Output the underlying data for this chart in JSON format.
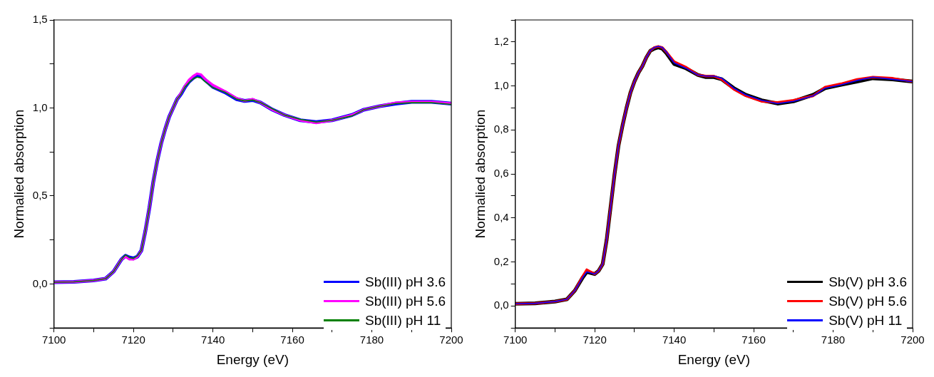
{
  "chart_data": [
    {
      "type": "line",
      "xlabel": "Energy (eV)",
      "ylabel": "Normalied absorption",
      "legend": "bottom right",
      "xlim": [
        7100,
        7200
      ],
      "xticks": [
        7100,
        {
          "value": 7110,
          "label": null
        },
        7120,
        {
          "value": 7130,
          "label": null
        },
        7140,
        {
          "value": 7150,
          "label": null
        },
        7160,
        {
          "value": 7170,
          "label": null
        },
        7180,
        {
          "value": 7190,
          "label": null
        },
        7200
      ],
      "ylim": [
        -0.25,
        1.5
      ],
      "yticks": [
        {
          "value": -0.25,
          "label": null
        },
        {
          "value": 0,
          "label": "0,0"
        },
        {
          "value": 0.25,
          "label": null
        },
        {
          "value": 0.5,
          "label": "0,5"
        },
        {
          "value": 0.75,
          "label": null
        },
        {
          "value": 1,
          "label": "1,0"
        },
        {
          "value": 1.25,
          "label": null
        },
        {
          "value": 1.5,
          "label": "1,5"
        }
      ],
      "x": [
        7100,
        7105,
        7110,
        7113,
        7115,
        7117,
        7118,
        7119,
        7120,
        7121,
        7122,
        7123,
        7124,
        7125,
        7126,
        7127,
        7128,
        7129,
        7130,
        7131,
        7132,
        7133,
        7134,
        7135,
        7136,
        7137,
        7138,
        7140,
        7143,
        7146,
        7148,
        7150,
        7152,
        7155,
        7158,
        7162,
        7166,
        7170,
        7175,
        7178,
        7182,
        7186,
        7190,
        7195,
        7200
      ],
      "series": [
        {
          "name": "Sb(III) pH 3.6",
          "color": "#0000ff",
          "values": [
            0.01,
            0.012,
            0.02,
            0.03,
            0.07,
            0.14,
            0.16,
            0.15,
            0.145,
            0.155,
            0.19,
            0.3,
            0.43,
            0.58,
            0.7,
            0.8,
            0.88,
            0.95,
            1.0,
            1.05,
            1.08,
            1.12,
            1.15,
            1.17,
            1.185,
            1.18,
            1.16,
            1.12,
            1.09,
            1.05,
            1.04,
            1.045,
            1.03,
            0.99,
            0.96,
            0.93,
            0.92,
            0.93,
            0.96,
            0.99,
            1.01,
            1.025,
            1.035,
            1.035,
            1.025
          ]
        },
        {
          "name": "Sb(III) pH 5.6",
          "color": "#ff00ff",
          "values": [
            0.01,
            0.012,
            0.02,
            0.03,
            0.07,
            0.14,
            0.155,
            0.14,
            0.14,
            0.155,
            0.19,
            0.3,
            0.43,
            0.58,
            0.7,
            0.8,
            0.88,
            0.95,
            1.0,
            1.05,
            1.085,
            1.125,
            1.16,
            1.18,
            1.195,
            1.19,
            1.165,
            1.13,
            1.095,
            1.055,
            1.04,
            1.05,
            1.03,
            0.99,
            0.96,
            0.93,
            0.915,
            0.93,
            0.96,
            0.99,
            1.01,
            1.03,
            1.035,
            1.035,
            1.025
          ]
        },
        {
          "name": "Sb(III) pH 11",
          "color": "#008000",
          "values": [
            0.01,
            0.012,
            0.02,
            0.03,
            0.07,
            0.14,
            0.165,
            0.15,
            0.145,
            0.16,
            0.19,
            0.3,
            0.43,
            0.58,
            0.7,
            0.8,
            0.88,
            0.95,
            1.0,
            1.05,
            1.08,
            1.12,
            1.145,
            1.165,
            1.175,
            1.17,
            1.15,
            1.115,
            1.09,
            1.05,
            1.04,
            1.045,
            1.03,
            0.995,
            0.96,
            0.935,
            0.92,
            0.93,
            0.955,
            0.99,
            1.01,
            1.025,
            1.03,
            1.03,
            1.02
          ]
        }
      ]
    },
    {
      "type": "line",
      "xlabel": "Energy (eV)",
      "ylabel": "Normalied absorption",
      "legend": "bottom right",
      "xlim": [
        7100,
        7200
      ],
      "xticks": [
        7100,
        {
          "value": 7110,
          "label": null
        },
        7120,
        {
          "value": 7130,
          "label": null
        },
        7140,
        {
          "value": 7150,
          "label": null
        },
        7160,
        {
          "value": 7170,
          "label": null
        },
        7180,
        {
          "value": 7190,
          "label": null
        },
        7200
      ],
      "ylim": [
        -0.1,
        1.3
      ],
      "yticks": [
        {
          "value": -0.1,
          "label": null
        },
        {
          "value": 0,
          "label": "0,0"
        },
        {
          "value": 0.1,
          "label": null
        },
        {
          "value": 0.2,
          "label": "0,2"
        },
        {
          "value": 0.3,
          "label": null
        },
        {
          "value": 0.4,
          "label": "0,4"
        },
        {
          "value": 0.5,
          "label": null
        },
        {
          "value": 0.6,
          "label": "0,6"
        },
        {
          "value": 0.7,
          "label": null
        },
        {
          "value": 0.8,
          "label": "0,8"
        },
        {
          "value": 0.9,
          "label": null
        },
        {
          "value": 1.0,
          "label": "1,0"
        },
        {
          "value": 1.1,
          "label": null
        },
        {
          "value": 1.2,
          "label": "1,2"
        },
        {
          "value": 1.3,
          "label": null
        }
      ],
      "x": [
        7100,
        7105,
        7110,
        7113,
        7115,
        7117,
        7118,
        7119,
        7120,
        7121,
        7122,
        7123,
        7124,
        7125,
        7126,
        7127,
        7128,
        7129,
        7130,
        7131,
        7132,
        7133,
        7134,
        7135,
        7136,
        7137,
        7138,
        7140,
        7143,
        7146,
        7148,
        7150,
        7152,
        7155,
        7158,
        7162,
        7166,
        7170,
        7175,
        7178,
        7182,
        7186,
        7190,
        7195,
        7200
      ],
      "series": [
        {
          "name": "Sb(V) pH 3.6",
          "color": "#000000",
          "values": [
            0.01,
            0.012,
            0.02,
            0.03,
            0.07,
            0.13,
            0.155,
            0.15,
            0.145,
            0.16,
            0.19,
            0.3,
            0.45,
            0.6,
            0.73,
            0.82,
            0.9,
            0.97,
            1.02,
            1.06,
            1.09,
            1.13,
            1.16,
            1.17,
            1.175,
            1.17,
            1.15,
            1.1,
            1.08,
            1.05,
            1.04,
            1.04,
            1.03,
            0.99,
            0.96,
            0.935,
            0.92,
            0.93,
            0.96,
            0.99,
            1.005,
            1.02,
            1.035,
            1.03,
            1.02
          ]
        },
        {
          "name": "Sb(V) pH 5.6",
          "color": "#ff0000",
          "values": [
            0.01,
            0.012,
            0.02,
            0.03,
            0.07,
            0.135,
            0.165,
            0.155,
            0.145,
            0.16,
            0.19,
            0.3,
            0.45,
            0.6,
            0.73,
            0.82,
            0.9,
            0.97,
            1.02,
            1.06,
            1.09,
            1.13,
            1.16,
            1.175,
            1.18,
            1.175,
            1.155,
            1.11,
            1.085,
            1.05,
            1.045,
            1.045,
            1.03,
            0.985,
            0.955,
            0.93,
            0.925,
            0.935,
            0.955,
            0.995,
            1.01,
            1.03,
            1.04,
            1.035,
            1.02
          ]
        },
        {
          "name": "Sb(V) pH 11",
          "color": "#0000ff",
          "values": [
            0.01,
            0.012,
            0.02,
            0.03,
            0.07,
            0.13,
            0.155,
            0.15,
            0.145,
            0.16,
            0.19,
            0.3,
            0.45,
            0.6,
            0.73,
            0.82,
            0.9,
            0.97,
            1.02,
            1.06,
            1.09,
            1.13,
            1.16,
            1.175,
            1.18,
            1.175,
            1.155,
            1.105,
            1.08,
            1.05,
            1.045,
            1.045,
            1.035,
            0.99,
            0.96,
            0.935,
            0.92,
            0.93,
            0.955,
            0.99,
            1.005,
            1.025,
            1.04,
            1.03,
            1.02
          ]
        }
      ]
    }
  ]
}
